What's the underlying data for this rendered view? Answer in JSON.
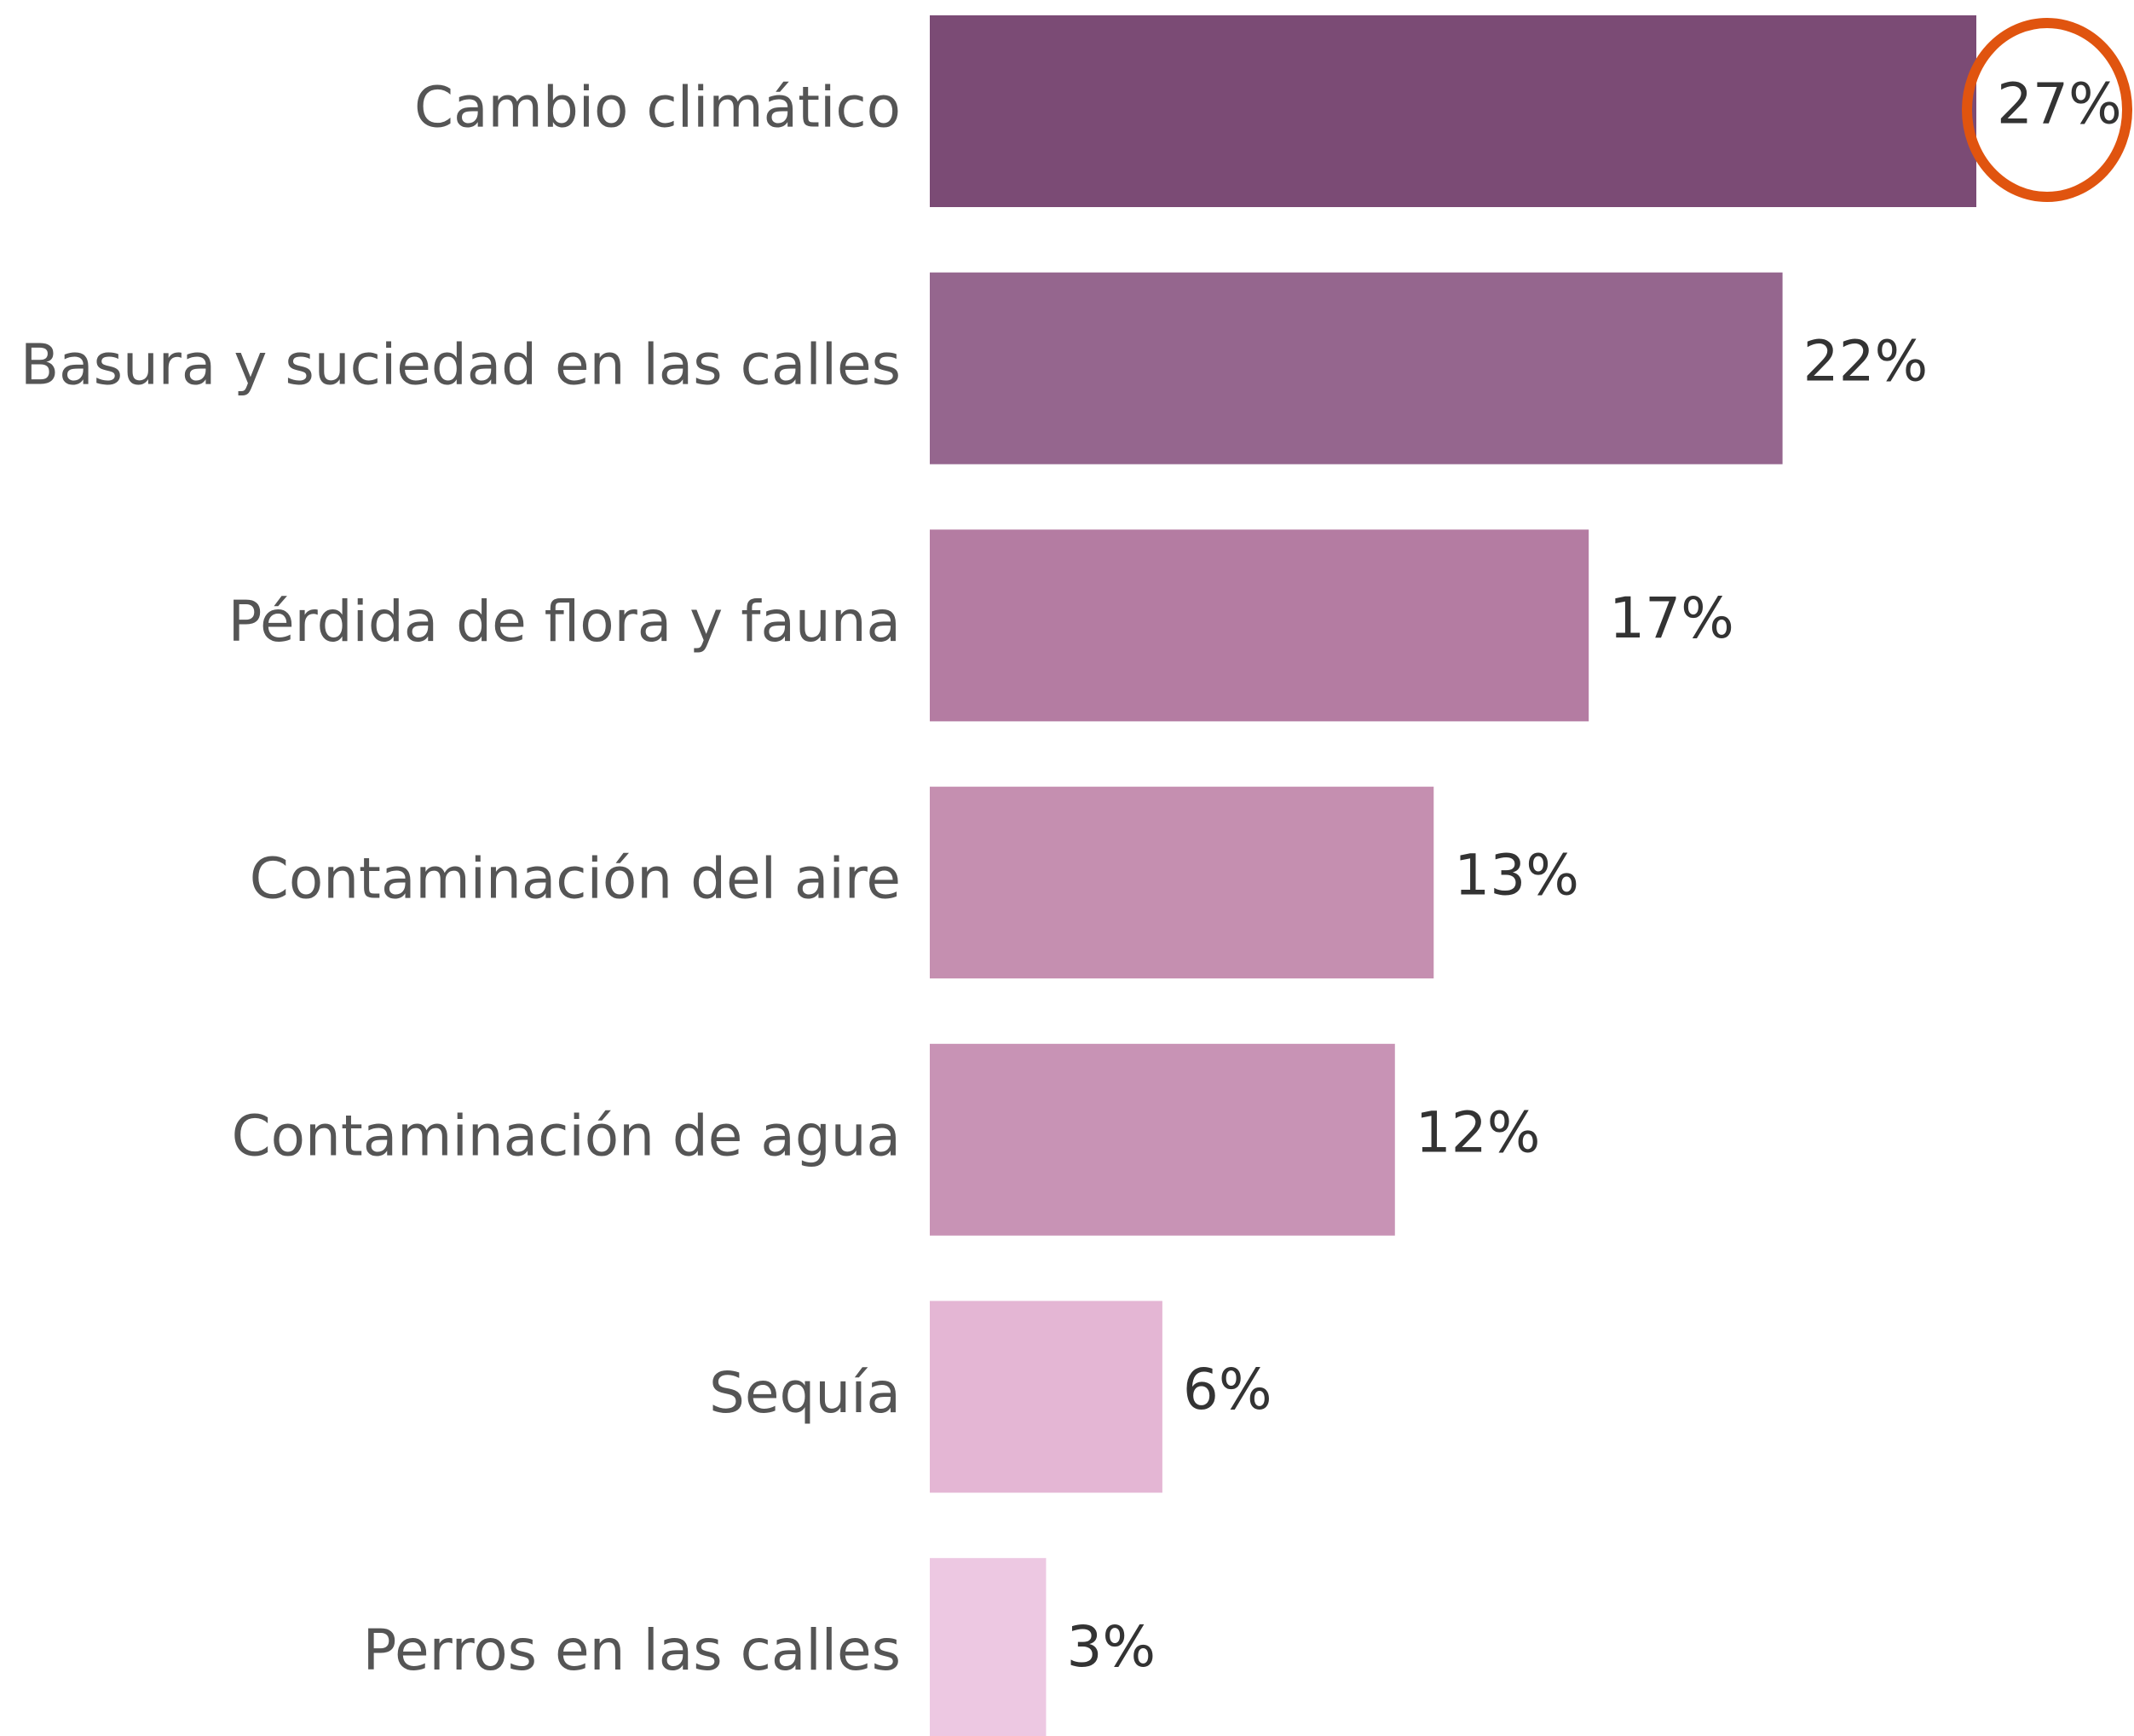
{
  "chart_data": {
    "type": "barh",
    "categories": [
      "Cambio climático",
      "Basura y suciedad en las calles",
      "Pérdida de flora y fauna",
      "Contaminación del aire",
      "Contaminación de agua",
      "Sequía",
      "Perros en las calles"
    ],
    "values": [
      27,
      22,
      17,
      13,
      12,
      6,
      3
    ],
    "value_labels": [
      "27%",
      "22%",
      "17%",
      "13%",
      "12%",
      "6%",
      "3%"
    ],
    "colors": [
      "#7b4b75",
      "#95668e",
      "#b47ca2",
      "#c58fb0",
      "#c893b5",
      "#e4b6d4",
      "#edc8e2"
    ]
  }
}
